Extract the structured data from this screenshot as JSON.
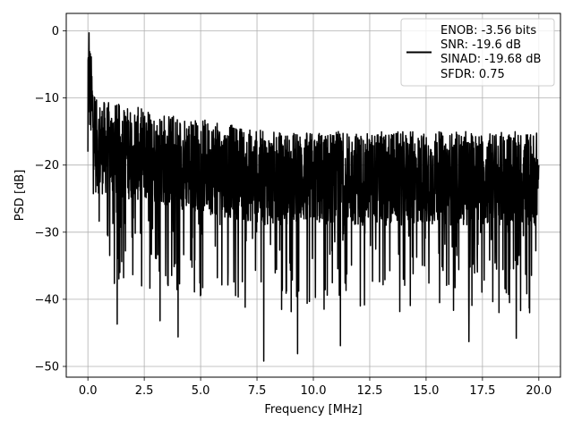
{
  "chart_data": {
    "type": "line",
    "title": "",
    "xlabel": "Frequency [MHz]",
    "ylabel": "PSD [dB]",
    "xlim": [
      -0.96,
      20.96
    ],
    "ylim": [
      -51.6,
      2.6
    ],
    "xticks": [
      0.0,
      2.5,
      5.0,
      7.5,
      10.0,
      12.5,
      15.0,
      17.5,
      20.0
    ],
    "xtick_labels": [
      "0.0",
      "2.5",
      "5.0",
      "7.5",
      "10.0",
      "12.5",
      "15.0",
      "17.5",
      "20.0"
    ],
    "yticks": [
      0,
      -10,
      -20,
      -30,
      -40,
      -50
    ],
    "ytick_labels": [
      "0",
      "−10",
      "−20",
      "−30",
      "−40",
      "−50"
    ],
    "grid": true,
    "legend_position": "top-right",
    "series": [
      {
        "legend_lines": [
          "ENOB: -3.56 bits",
          "SNR: -19.6 dB",
          "SINAD: -19.68 dB",
          "SFDR: 0.75"
        ],
        "color": "#000000",
        "x_range": [
          0.0,
          20.0
        ],
        "description": "dense noisy spectrum",
        "envelope_points": [
          {
            "x": 0.0,
            "y": -18
          },
          {
            "x": 0.05,
            "y": -0.3
          },
          {
            "x": 0.3,
            "y": -10
          },
          {
            "x": 1.3,
            "y": -43.7
          },
          {
            "x": 3.2,
            "y": -43.2
          },
          {
            "x": 4.0,
            "y": -45.6
          },
          {
            "x": 7.8,
            "y": -49.2
          },
          {
            "x": 9.3,
            "y": -48.1
          },
          {
            "x": 11.2,
            "y": -46.9
          },
          {
            "x": 16.9,
            "y": -46.3
          },
          {
            "x": 19.0,
            "y": -45.8
          },
          {
            "x": 20.0,
            "y": -20
          }
        ],
        "min_level": -49.2,
        "max_level": -0.3,
        "typical_range": [
          -35,
          -10
        ]
      }
    ]
  }
}
